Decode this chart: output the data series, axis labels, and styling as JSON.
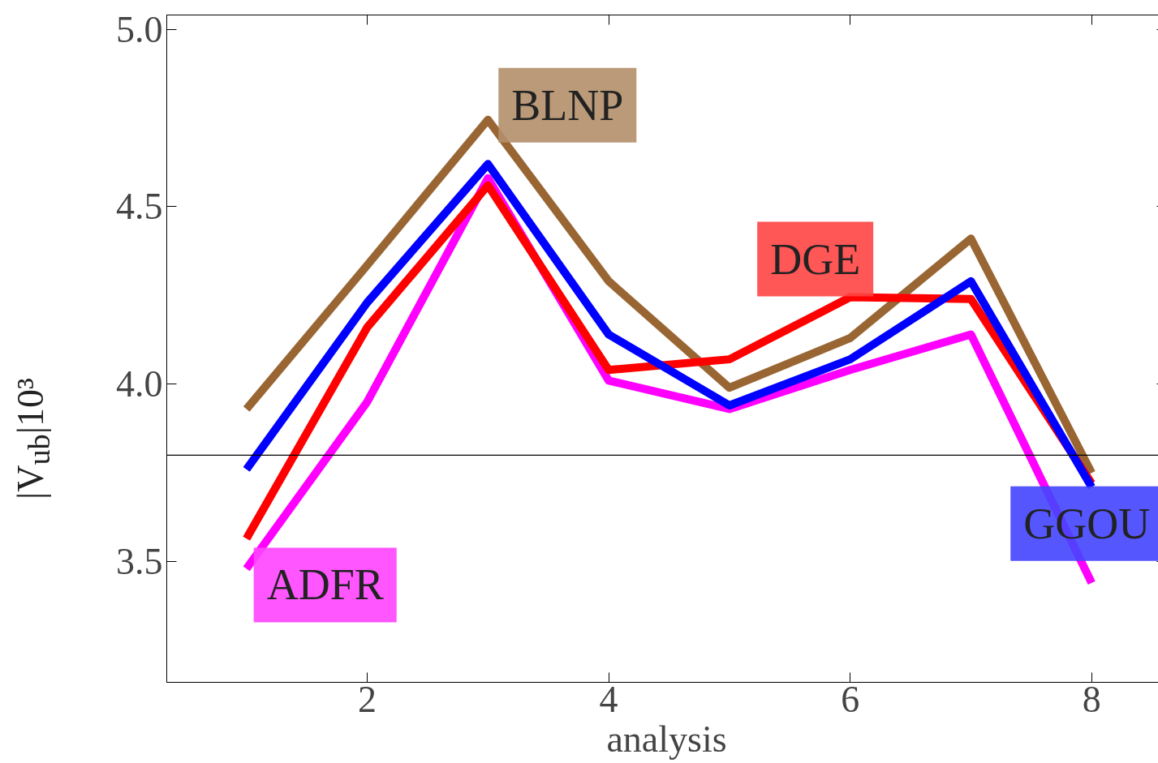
{
  "chart_data": {
    "type": "line",
    "xlabel": "analysis",
    "ylabel": "|V$_{ub}$|10³",
    "x": [
      1,
      2,
      3,
      4,
      5,
      6,
      7,
      8
    ],
    "xlim": [
      0.34,
      8.62
    ],
    "xticks": [
      2,
      4,
      6,
      8
    ],
    "ylim": [
      3.16,
      5.04
    ],
    "yticks": [
      {
        "value": 3.5,
        "label": "3.5"
      },
      {
        "value": 4.0,
        "label": "4.0"
      },
      {
        "value": 4.5,
        "label": "4.5"
      },
      {
        "value": 5.0,
        "label": "5.0"
      }
    ],
    "grid": false,
    "legend": false,
    "marker": "none",
    "line_style": "solid",
    "series": [
      {
        "name": "ADFR",
        "color": "#ff00ff",
        "values": [
          3.48,
          3.95,
          4.58,
          4.01,
          3.93,
          4.04,
          4.14,
          3.44
        ]
      },
      {
        "name": "BLNP",
        "color": "#996633",
        "values": [
          3.93,
          4.335,
          4.745,
          4.29,
          3.99,
          4.13,
          4.41,
          3.75
        ]
      },
      {
        "name": "DGE",
        "color": "#ff0000",
        "values": [
          3.565,
          4.16,
          4.56,
          4.04,
          4.07,
          4.245,
          4.24,
          3.72
        ]
      },
      {
        "name": "GGOU",
        "color": "#0000ff",
        "values": [
          3.76,
          4.23,
          4.62,
          4.14,
          3.94,
          4.07,
          4.29,
          3.71
        ]
      }
    ],
    "ref_lines": [
      {
        "axis": "y",
        "value": 3.8,
        "color": "#000000",
        "line_style": "solid"
      }
    ]
  }
}
